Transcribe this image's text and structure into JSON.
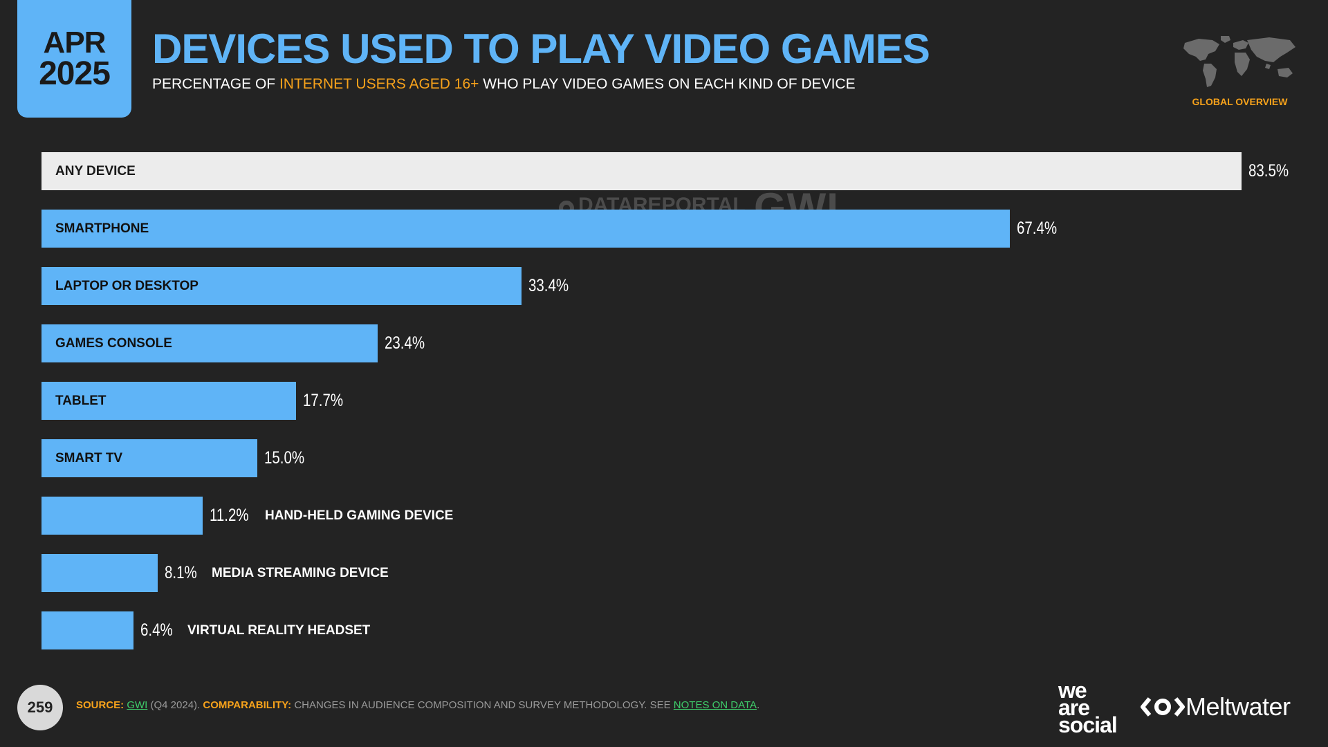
{
  "header": {
    "month": "APR",
    "year": "2025",
    "title": "DEVICES USED TO PLAY VIDEO GAMES",
    "subtitle_pre": "PERCENTAGE OF ",
    "subtitle_highlight": "INTERNET USERS AGED 16+",
    "subtitle_post": " WHO PLAY VIDEO GAMES ON EACH KIND OF DEVICE",
    "region": "GLOBAL OVERVIEW"
  },
  "watermark": {
    "datareportal": "DATAREPORTAL",
    "gwi": "GWI."
  },
  "chart_data": {
    "type": "bar",
    "orientation": "horizontal",
    "categories": [
      "ANY DEVICE",
      "SMARTPHONE",
      "LAPTOP OR DESKTOP",
      "GAMES CONSOLE",
      "TABLET",
      "SMART TV",
      "HAND-HELD GAMING DEVICE",
      "MEDIA STREAMING DEVICE",
      "VIRTUAL REALITY HEADSET"
    ],
    "values": [
      83.5,
      67.4,
      33.4,
      23.4,
      17.7,
      15.0,
      11.2,
      8.1,
      6.4
    ],
    "value_labels": [
      "83.5%",
      "67.4%",
      "33.4%",
      "23.4%",
      "17.7%",
      "15.0%",
      "11.2%",
      "8.1%",
      "6.4%"
    ],
    "unit": "%",
    "xlim": [
      0,
      83.5
    ],
    "colors": {
      "highlight": "#ececec",
      "default": "#5fb4f7"
    }
  },
  "footer": {
    "page_number": "259",
    "source_label": "SOURCE:",
    "source_link": "GWI",
    "source_rest": " (Q4 2024). ",
    "comparability_label": "COMPARABILITY:",
    "comparability_text": " CHANGES IN AUDIENCE COMPOSITION AND SURVEY METHODOLOGY. SEE ",
    "notes_link": "NOTES ON DATA",
    "end": "."
  },
  "logos": {
    "we": "we",
    "are": "are",
    "social": "social",
    "meltwater": "Meltwater"
  },
  "colors": {
    "accent_blue": "#5fb4f7",
    "accent_orange": "#f7a21b",
    "link_green": "#3fcf6b",
    "background": "#232323"
  },
  "icons": {
    "map": "world-map-icon",
    "meltwater": "meltwater-logo-icon"
  }
}
